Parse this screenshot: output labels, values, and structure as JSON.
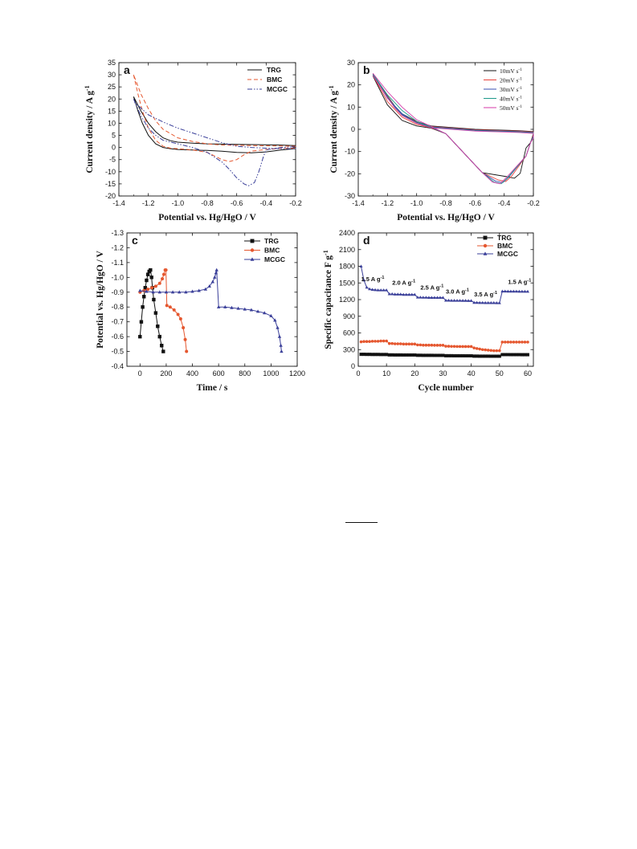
{
  "chart_data": [
    {
      "panel": "a",
      "type": "line",
      "xlabel": "Potential vs. Hg/HgO / V",
      "ylabel": "Current density / A g",
      "ylabel_sup": "-1",
      "xlim": [
        -1.4,
        -0.2
      ],
      "ylim": [
        -20,
        35
      ],
      "xticks": [
        -1.4,
        -1.2,
        -1.0,
        -0.8,
        -0.6,
        -0.4,
        -0.2
      ],
      "yticks": [
        -20,
        -15,
        -10,
        -5,
        0,
        5,
        10,
        15,
        20,
        25,
        30,
        35
      ],
      "legend_position": "top-right",
      "series": [
        {
          "name": "TRG",
          "color": "#111111",
          "dash": "solid",
          "x": [
            -1.3,
            -1.27,
            -1.24,
            -1.2,
            -1.15,
            -1.1,
            -1.05,
            -1.0,
            -0.9,
            -0.8,
            -0.7,
            -0.6,
            -0.5,
            -0.4,
            -0.3,
            -0.2,
            -0.2,
            -0.3,
            -0.4,
            -0.5,
            -0.6,
            -0.7,
            -0.8,
            -0.9,
            -1.0,
            -1.05,
            -1.1,
            -1.15,
            -1.2,
            -1.25,
            -1.3
          ],
          "y": [
            21,
            15,
            10,
            5,
            1.5,
            0,
            -0.5,
            -0.8,
            -1,
            -1.2,
            -1.5,
            -2,
            -2.2,
            -1.8,
            -1,
            -0.5,
            0.8,
            1,
            1.1,
            1.2,
            1.3,
            1.4,
            1.5,
            1.8,
            2.2,
            2.8,
            4,
            6.5,
            10,
            15,
            21
          ]
        },
        {
          "name": "BMC",
          "color": "#e5572f",
          "dash": "dashed",
          "x": [
            -1.3,
            -1.27,
            -1.24,
            -1.2,
            -1.15,
            -1.1,
            -1.05,
            -1.0,
            -0.9,
            -0.8,
            -0.75,
            -0.7,
            -0.65,
            -0.6,
            -0.55,
            -0.5,
            -0.4,
            -0.3,
            -0.2,
            -0.2,
            -0.3,
            -0.4,
            -0.5,
            -0.6,
            -0.7,
            -0.8,
            -0.9,
            -1.0,
            -1.1,
            -1.15,
            -1.2,
            -1.25,
            -1.3
          ],
          "y": [
            30,
            22,
            15,
            8,
            3,
            0.5,
            -0.3,
            -0.5,
            -1,
            -2,
            -3.5,
            -5,
            -5.8,
            -5,
            -3,
            -1.5,
            -0.8,
            -0.4,
            -0.3,
            0.5,
            0.6,
            0.7,
            0.8,
            0.9,
            1,
            1.5,
            2.5,
            4,
            7.5,
            11,
            16,
            22,
            30
          ]
        },
        {
          "name": "MCGC",
          "color": "#3a3f99",
          "dash": "dashdot",
          "x": [
            -1.3,
            -1.25,
            -1.2,
            -1.15,
            -1.1,
            -1.0,
            -0.9,
            -0.8,
            -0.7,
            -0.65,
            -0.6,
            -0.55,
            -0.52,
            -0.48,
            -0.45,
            -0.42,
            -0.4,
            -0.3,
            -0.2,
            -0.2,
            -0.3,
            -0.4,
            -0.5,
            -0.6,
            -0.7,
            -0.8,
            -0.9,
            -1.0,
            -1.1,
            -1.2,
            -1.3
          ],
          "y": [
            20,
            13,
            8,
            5,
            3,
            1.5,
            0,
            -2,
            -6,
            -9,
            -12.5,
            -15,
            -15.8,
            -14.5,
            -10,
            -4,
            -1,
            0,
            0.3,
            -0.5,
            -0.5,
            -0.3,
            0,
            0.5,
            2,
            4,
            6,
            8,
            10.5,
            13.5,
            19
          ]
        }
      ]
    },
    {
      "panel": "b",
      "type": "line",
      "xlabel": "Potential vs. Hg/HgO / V",
      "ylabel": "Current density / A g",
      "ylabel_sup": "-1",
      "xlim": [
        -1.4,
        -0.2
      ],
      "ylim": [
        -30,
        30
      ],
      "xticks": [
        -1.4,
        -1.2,
        -1.0,
        -0.8,
        -0.6,
        -0.4,
        -0.2
      ],
      "yticks": [
        -30,
        -20,
        -10,
        0,
        10,
        20,
        30
      ],
      "legend_position": "top-right",
      "series": [
        {
          "name": "10mV s",
          "sup": "-1",
          "color": "#111111",
          "peak_x": -0.33,
          "peak_y": -22
        },
        {
          "name": "20mV s",
          "sup": "-1",
          "color": "#e8413a",
          "peak_x": -0.39,
          "peak_y": -23.5
        },
        {
          "name": "30mV s",
          "sup": "-1",
          "color": "#3a4fb0",
          "peak_x": -0.41,
          "peak_y": -24
        },
        {
          "name": "40mV s",
          "sup": "-1",
          "color": "#1e9a8a",
          "peak_x": -0.42,
          "peak_y": -24.5
        },
        {
          "name": "50mV s",
          "sup": "-1",
          "color": "#d43aa8",
          "peak_x": -0.43,
          "peak_y": -24.5
        }
      ]
    },
    {
      "panel": "c",
      "type": "line",
      "xlabel": "Time / s",
      "ylabel": "Potential vs. Hg/HgO / V",
      "xlim": [
        -100,
        1200
      ],
      "ylim": [
        -1.3,
        -0.4
      ],
      "xticks": [
        0,
        200,
        400,
        600,
        800,
        1000,
        1200
      ],
      "yticks": [
        -1.3,
        -1.2,
        -1.1,
        -1.0,
        -0.9,
        -0.8,
        -0.7,
        -0.6,
        -0.5,
        -0.4
      ],
      "legend_position": "top-right",
      "series": [
        {
          "name": "TRG",
          "color": "#111111",
          "marker": "square",
          "x": [
            0,
            10,
            20,
            30,
            40,
            50,
            60,
            70,
            80,
            88,
            95,
            105,
            120,
            135,
            150,
            165,
            178
          ],
          "y": [
            -0.6,
            -0.7,
            -0.8,
            -0.87,
            -0.93,
            -0.98,
            -1.02,
            -1.04,
            -1.05,
            -1.0,
            -0.93,
            -0.85,
            -0.76,
            -0.67,
            -0.6,
            -0.54,
            -0.5
          ]
        },
        {
          "name": "BMC",
          "color": "#e5572f",
          "marker": "circle",
          "x": [
            0,
            30,
            60,
            90,
            120,
            150,
            170,
            182,
            192,
            198,
            205,
            230,
            260,
            290,
            310,
            330,
            345,
            355
          ],
          "y": [
            -0.9,
            -0.91,
            -0.92,
            -0.93,
            -0.94,
            -0.96,
            -0.99,
            -1.02,
            -1.05,
            -1.05,
            -0.81,
            -0.8,
            -0.78,
            -0.75,
            -0.72,
            -0.66,
            -0.58,
            -0.5
          ]
        },
        {
          "name": "MCGC",
          "color": "#3a3f99",
          "marker": "triangle",
          "x": [
            0,
            50,
            100,
            150,
            200,
            250,
            300,
            350,
            400,
            450,
            500,
            530,
            555,
            570,
            580,
            585,
            600,
            650,
            700,
            750,
            800,
            850,
            900,
            950,
            1000,
            1030,
            1050,
            1065,
            1075,
            1080
          ],
          "y": [
            -0.91,
            -0.905,
            -0.9,
            -0.9,
            -0.9,
            -0.9,
            -0.9,
            -0.9,
            -0.905,
            -0.91,
            -0.92,
            -0.94,
            -0.97,
            -1.0,
            -1.03,
            -1.05,
            -0.8,
            -0.8,
            -0.795,
            -0.79,
            -0.785,
            -0.78,
            -0.77,
            -0.76,
            -0.74,
            -0.71,
            -0.66,
            -0.6,
            -0.54,
            -0.5
          ]
        }
      ]
    },
    {
      "panel": "d",
      "type": "line",
      "xlabel": "Cycle number",
      "ylabel": "Specific capacitance F g",
      "ylabel_sup": "-1",
      "xlim": [
        0,
        62
      ],
      "ylim": [
        0,
        2400
      ],
      "xticks": [
        0,
        10,
        20,
        30,
        40,
        50,
        60
      ],
      "yticks": [
        0,
        300,
        600,
        900,
        1200,
        1500,
        1800,
        2100,
        2400
      ],
      "legend_position": "top-right",
      "annotations": [
        {
          "text": "1.5 A g",
          "sup": "-1",
          "x": 1,
          "y": 1530
        },
        {
          "text": "2.0 A g",
          "sup": "-1",
          "x": 12,
          "y": 1470
        },
        {
          "text": "2.5 A g",
          "sup": "-1",
          "x": 22,
          "y": 1380
        },
        {
          "text": "3.0 A g",
          "sup": "-1",
          "x": 31,
          "y": 1310
        },
        {
          "text": "3.5 A g",
          "sup": "-1",
          "x": 41,
          "y": 1260
        },
        {
          "text": "1.5 A g",
          "sup": "-1",
          "x": 53,
          "y": 1480
        }
      ],
      "series": [
        {
          "name": "TRG",
          "color": "#111111",
          "marker": "square",
          "x": [
            1,
            2,
            3,
            4,
            5,
            6,
            7,
            8,
            9,
            10,
            11,
            12,
            13,
            14,
            15,
            16,
            17,
            18,
            19,
            20,
            21,
            22,
            23,
            24,
            25,
            26,
            27,
            28,
            29,
            30,
            31,
            32,
            33,
            34,
            35,
            36,
            37,
            38,
            39,
            40,
            41,
            42,
            43,
            44,
            45,
            46,
            47,
            48,
            49,
            50,
            51,
            52,
            53,
            54,
            55,
            56,
            57,
            58,
            59,
            60
          ],
          "y": [
            215,
            215,
            214,
            214,
            213,
            213,
            213,
            212,
            212,
            212,
            205,
            205,
            204,
            204,
            204,
            203,
            203,
            203,
            203,
            203,
            198,
            198,
            197,
            197,
            197,
            197,
            196,
            196,
            196,
            196,
            190,
            190,
            190,
            189,
            189,
            189,
            189,
            188,
            188,
            188,
            183,
            183,
            182,
            182,
            182,
            182,
            181,
            181,
            181,
            181,
            210,
            210,
            210,
            209,
            209,
            209,
            209,
            208,
            208,
            208
          ]
        },
        {
          "name": "BMC",
          "color": "#e5572f",
          "marker": "circle",
          "x": [
            1,
            2,
            3,
            4,
            5,
            6,
            7,
            8,
            9,
            10,
            11,
            12,
            13,
            14,
            15,
            16,
            17,
            18,
            19,
            20,
            21,
            22,
            23,
            24,
            25,
            26,
            27,
            28,
            29,
            30,
            31,
            32,
            33,
            34,
            35,
            36,
            37,
            38,
            39,
            40,
            41,
            42,
            43,
            44,
            45,
            46,
            47,
            48,
            49,
            50,
            51,
            52,
            53,
            54,
            55,
            56,
            57,
            58,
            59,
            60
          ],
          "y": [
            440,
            445,
            445,
            445,
            450,
            450,
            450,
            455,
            455,
            455,
            410,
            410,
            405,
            405,
            405,
            400,
            400,
            400,
            400,
            400,
            385,
            385,
            380,
            380,
            380,
            380,
            378,
            378,
            378,
            378,
            360,
            360,
            358,
            358,
            356,
            356,
            355,
            355,
            355,
            355,
            330,
            320,
            310,
            300,
            295,
            290,
            285,
            280,
            280,
            280,
            435,
            435,
            435,
            435,
            435,
            435,
            435,
            435,
            435,
            435
          ]
        },
        {
          "name": "MCGC",
          "color": "#3a3f99",
          "marker": "triangle",
          "x": [
            1,
            2,
            3,
            4,
            5,
            6,
            7,
            8,
            9,
            10,
            11,
            12,
            13,
            14,
            15,
            16,
            17,
            18,
            19,
            20,
            21,
            22,
            23,
            24,
            25,
            26,
            27,
            28,
            29,
            30,
            31,
            32,
            33,
            34,
            35,
            36,
            37,
            38,
            39,
            40,
            41,
            42,
            43,
            44,
            45,
            46,
            47,
            48,
            49,
            50,
            51,
            52,
            53,
            54,
            55,
            56,
            57,
            58,
            59,
            60
          ],
          "y": [
            1800,
            1550,
            1420,
            1390,
            1380,
            1375,
            1370,
            1370,
            1370,
            1370,
            1300,
            1300,
            1295,
            1295,
            1295,
            1290,
            1290,
            1290,
            1290,
            1290,
            1240,
            1240,
            1238,
            1238,
            1236,
            1236,
            1235,
            1235,
            1235,
            1235,
            1185,
            1185,
            1183,
            1183,
            1182,
            1182,
            1181,
            1181,
            1180,
            1180,
            1145,
            1145,
            1143,
            1143,
            1142,
            1142,
            1141,
            1141,
            1140,
            1140,
            1350,
            1350,
            1348,
            1348,
            1347,
            1347,
            1346,
            1346,
            1345,
            1345
          ]
        }
      ]
    }
  ]
}
